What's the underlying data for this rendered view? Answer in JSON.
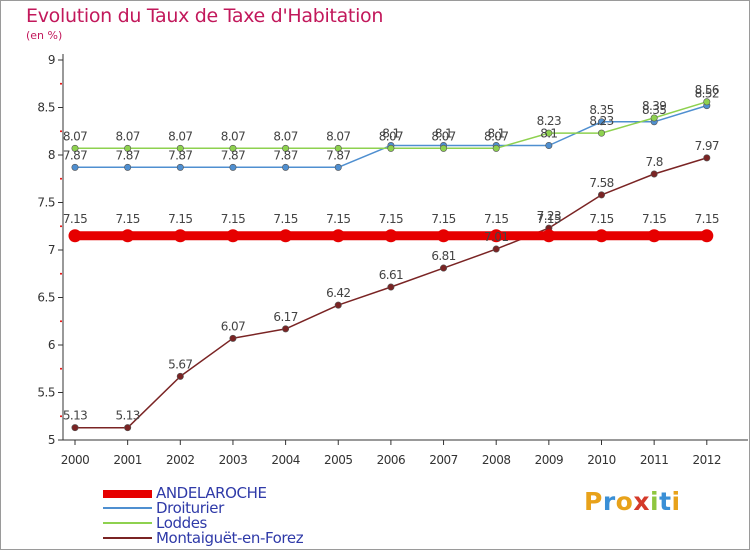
{
  "header": {
    "title": "Evolution du Taux de Taxe d'Habitation",
    "unit": "(en %)"
  },
  "brand": {
    "letters": [
      "P",
      "r",
      "o",
      "x",
      "i",
      "t",
      "i"
    ],
    "colors": [
      "#e8a21a",
      "#3a8fd6",
      "#e8a21a",
      "#d43a2a",
      "#8fc63f",
      "#3a8fd6",
      "#e8a21a"
    ]
  },
  "chart_data": {
    "type": "line",
    "title": "Evolution du Taux de Taxe d'Habitation",
    "ylabel": "(en %)",
    "xlabel": "",
    "x": [
      "2000",
      "2001",
      "2002",
      "2003",
      "2004",
      "2005",
      "2006",
      "2007",
      "2008",
      "2009",
      "2010",
      "2011",
      "2012"
    ],
    "ylim": [
      5,
      9
    ],
    "yticks": [
      5,
      5.5,
      6,
      6.5,
      7,
      7.5,
      8,
      8.5,
      9
    ],
    "ytick_labels": [
      "5",
      "5.5",
      "6",
      "6.5",
      "7",
      "7.5",
      "8",
      "8.5",
      "9"
    ],
    "grid": false,
    "legend_position": "bottom-left",
    "series": [
      {
        "name": "ANDELAROCHE",
        "color": "#e60000",
        "style": "thick",
        "values": [
          7.15,
          7.15,
          7.15,
          7.15,
          7.15,
          7.15,
          7.15,
          7.15,
          7.15,
          7.15,
          7.15,
          7.15,
          7.15
        ],
        "labels": [
          "7.15",
          "7.15",
          "7.15",
          "7.15",
          "7.15",
          "7.15",
          "7.15",
          "7.15",
          "7.15",
          "7.15",
          "7.15",
          "7.15",
          "7.15"
        ]
      },
      {
        "name": "Droiturier",
        "color": "#4f8fd0",
        "style": "thin",
        "values": [
          7.87,
          7.87,
          7.87,
          7.87,
          7.87,
          7.87,
          8.1,
          8.1,
          8.1,
          8.1,
          8.35,
          8.35,
          8.52
        ],
        "labels": [
          "7.87",
          "7.87",
          "7.87",
          "7.87",
          "7.87",
          "7.87",
          "8.1",
          "8.1",
          "8.1",
          "8.1",
          "8.35",
          "8.35",
          "8.52"
        ]
      },
      {
        "name": "Loddes",
        "color": "#8ed14f",
        "style": "thin",
        "values": [
          8.07,
          8.07,
          8.07,
          8.07,
          8.07,
          8.07,
          8.07,
          8.07,
          8.07,
          8.23,
          8.23,
          8.39,
          8.56
        ],
        "labels": [
          "8.07",
          "8.07",
          "8.07",
          "8.07",
          "8.07",
          "8.07",
          "8.07",
          "8.07",
          "8.07",
          "8.23",
          "8.23",
          "8.39",
          "8.56"
        ]
      },
      {
        "name": "Montaiguët-en-Forez",
        "color": "#7a2424",
        "style": "thin",
        "values": [
          5.13,
          5.13,
          5.67,
          6.07,
          6.17,
          6.42,
          6.61,
          6.81,
          7.01,
          7.23,
          7.58,
          7.8,
          7.97
        ],
        "labels": [
          "5.13",
          "5.13",
          "5.67",
          "6.07",
          "6.17",
          "6.42",
          "6.61",
          "6.81",
          "7.01",
          "7.23",
          "7.58",
          "7.8",
          "7.97"
        ]
      }
    ]
  }
}
